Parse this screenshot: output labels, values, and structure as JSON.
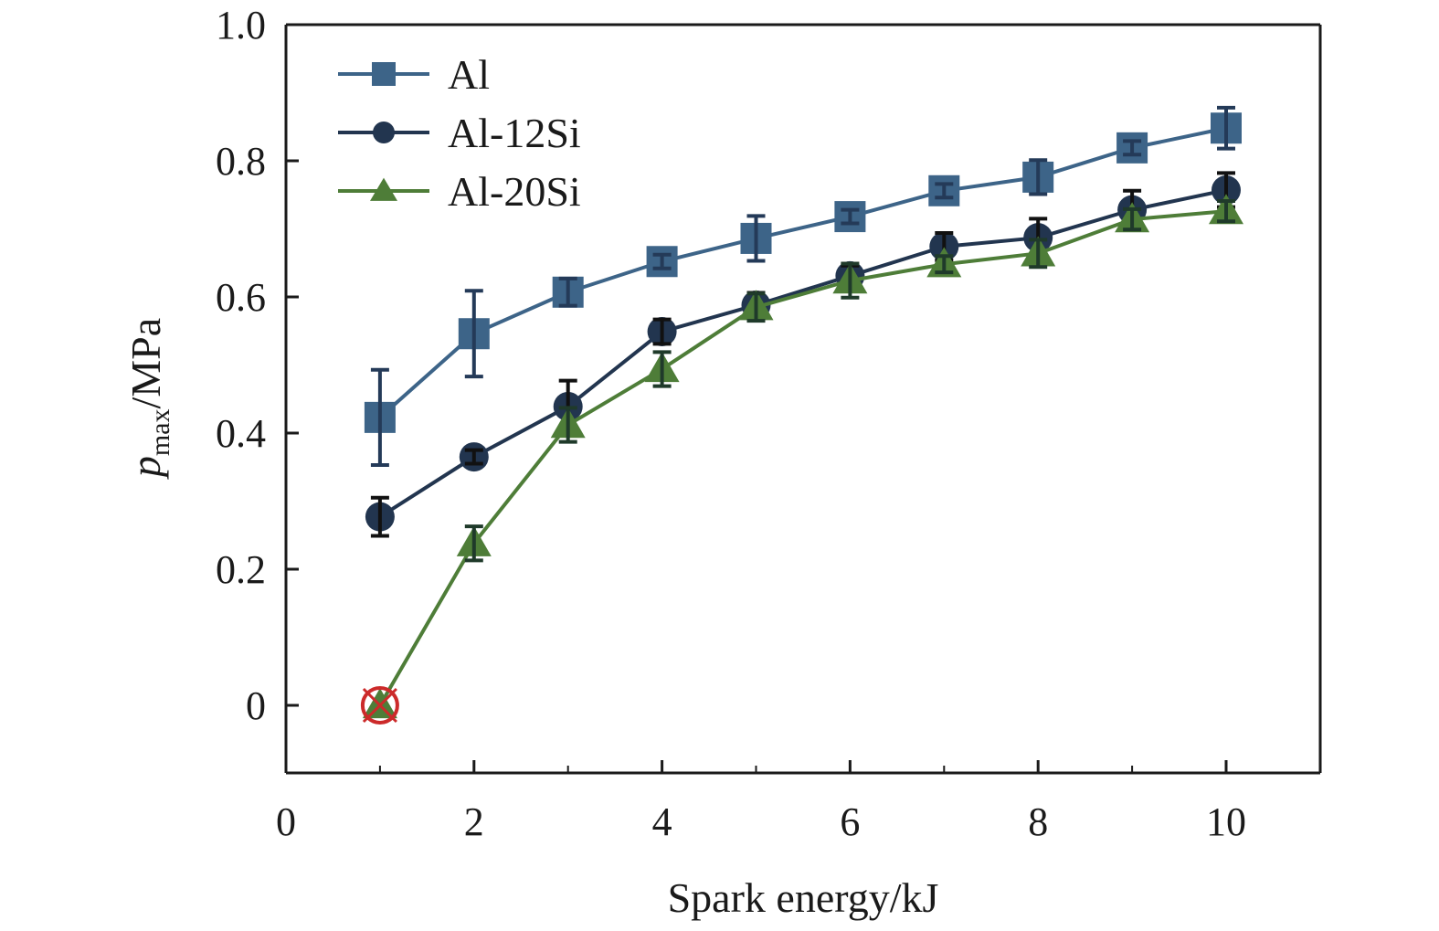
{
  "chart_data": {
    "type": "line",
    "title": "",
    "xlabel": "Spark energy/kJ",
    "ylabel_main": "p",
    "ylabel_sub": "max",
    "ylabel_suffix": "/MPa",
    "xlim": [
      0,
      11
    ],
    "ylim": [
      -0.1,
      1.0
    ],
    "xticks": [
      0,
      2,
      4,
      6,
      8,
      10
    ],
    "xtick_labels": [
      "0",
      "2",
      "4",
      "6",
      "8",
      "10"
    ],
    "yticks": [
      0,
      0.2,
      0.4,
      0.6,
      0.8,
      1.0
    ],
    "ytick_labels": [
      "0",
      "0.2",
      "0.4",
      "0.6",
      "0.8",
      "1.0"
    ],
    "grid": false,
    "legend_position": "top-left",
    "x": [
      1,
      2,
      3,
      4,
      5,
      6,
      7,
      8,
      9,
      10
    ],
    "series": [
      {
        "name": "Al",
        "marker": "square",
        "color": "#3d6488",
        "errcolor": "#243a58",
        "values": [
          0.423,
          0.546,
          0.607,
          0.652,
          0.686,
          0.718,
          0.756,
          0.776,
          0.819,
          0.848
        ],
        "errors": [
          0.07,
          0.063,
          0.02,
          0.01,
          0.033,
          0.01,
          0.01,
          0.025,
          0.01,
          0.03
        ]
      },
      {
        "name": "Al-12Si",
        "marker": "circle",
        "color": "#22354f",
        "errcolor": "#111111",
        "values": [
          0.277,
          0.365,
          0.439,
          0.549,
          0.588,
          0.631,
          0.674,
          0.687,
          0.728,
          0.757
        ],
        "errors": [
          0.028,
          0.01,
          0.038,
          0.018,
          0.018,
          0.015,
          0.02,
          0.028,
          0.028,
          0.025
        ]
      },
      {
        "name": "Al-20Si",
        "marker": "triangle",
        "color": "#4e7d38",
        "errcolor": "#1f3a2a",
        "values": [
          0.0,
          0.238,
          0.412,
          0.494,
          0.585,
          0.624,
          0.648,
          0.664,
          0.714,
          0.726
        ],
        "errors": [
          0.0,
          0.025,
          0.025,
          0.025,
          0.02,
          0.025,
          0.012,
          0.02,
          0.015,
          0.015
        ]
      }
    ],
    "annotations": [
      {
        "type": "no-ignition-marker",
        "series": "Al-20Si",
        "x": 1,
        "y": 0,
        "color": "#cc2a2a"
      }
    ]
  }
}
